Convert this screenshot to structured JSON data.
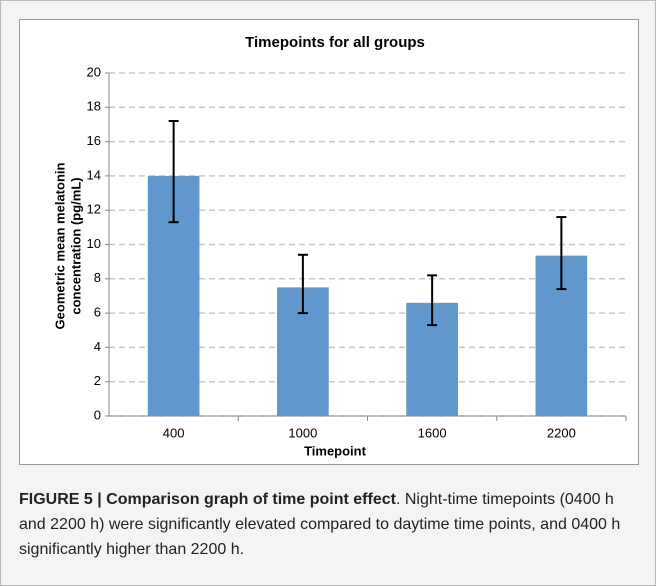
{
  "chart_data": {
    "type": "bar",
    "title": "Timepoints for all groups",
    "x_label": "Timepoint",
    "y_label": [
      "Geometric mean melatonin",
      "concentration (pg/mL)"
    ],
    "categories": [
      "400",
      "1000",
      "1600",
      "2200"
    ],
    "values": [
      14,
      7.5,
      6.6,
      9.35
    ],
    "error_upper": [
      3.2,
      1.9,
      1.6,
      2.25
    ],
    "error_lower": [
      2.7,
      1.5,
      1.3,
      1.95
    ],
    "color": "#6097cc",
    "ylim": [
      0,
      20
    ],
    "yticks": [
      0,
      2,
      4,
      6,
      8,
      10,
      12,
      14,
      16,
      18,
      20
    ],
    "grid": true
  },
  "caption": {
    "heading": "FIGURE 5 | Comparison graph of time point effect",
    "text": ". Night-time timepoints (0400 h and 2200 h) were significantly elevated compared to daytime time points, and 0400 h significantly higher than 2200 h."
  }
}
